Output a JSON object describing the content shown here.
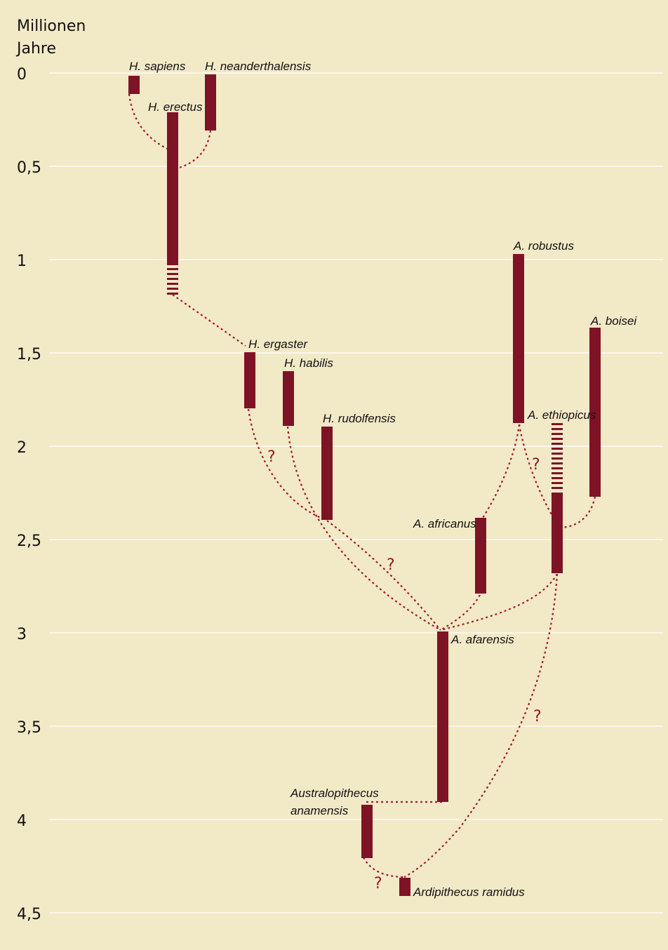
{
  "colors": {
    "background": "#f2e9c7",
    "bar": "#7e1326",
    "link": "#a31c33",
    "grid": "#fbf7ea"
  },
  "axis": {
    "title_line1": "Millionen",
    "title_line2": "Jahre",
    "unit": "million years ago",
    "ticks": [
      {
        "value": 0,
        "label": "0"
      },
      {
        "value": 0.5,
        "label": "0,5"
      },
      {
        "value": 1,
        "label": "1"
      },
      {
        "value": 1.5,
        "label": "1,5"
      },
      {
        "value": 2,
        "label": "2"
      },
      {
        "value": 2.5,
        "label": "2,5"
      },
      {
        "value": 3,
        "label": "3"
      },
      {
        "value": 3.5,
        "label": "3,5"
      },
      {
        "value": 4,
        "label": "4"
      },
      {
        "value": 4.5,
        "label": "4,5"
      }
    ]
  },
  "species": [
    {
      "id": "sapiens",
      "label": "H. sapiens",
      "start": 0.0,
      "end": 0.1
    },
    {
      "id": "neanderthalensis",
      "label": "H. neanderthalensis",
      "start": 0.0,
      "end": 0.3
    },
    {
      "id": "erectus",
      "label": "H. erectus",
      "start": 0.2,
      "end": 1.2,
      "uncertain_from": 1.05
    },
    {
      "id": "ergaster",
      "label": "H. ergaster",
      "start": 1.5,
      "end": 1.8
    },
    {
      "id": "habilis",
      "label": "H. habilis",
      "start": 1.6,
      "end": 1.9
    },
    {
      "id": "rudolfensis",
      "label": "H. rudolfensis",
      "start": 1.9,
      "end": 2.4
    },
    {
      "id": "robustus",
      "label": "A. robustus",
      "start": 0.95,
      "end": 1.85
    },
    {
      "id": "boisei",
      "label": "A. boisei",
      "start": 1.35,
      "end": 2.25
    },
    {
      "id": "ethiopicus",
      "label": "A. ethiopicus",
      "start": 1.85,
      "end": 2.7,
      "uncertain_to": 2.25
    },
    {
      "id": "africanus",
      "label": "A. africanus",
      "start": 2.4,
      "end": 2.8
    },
    {
      "id": "afarensis",
      "label": "A. afarensis",
      "start": 3.0,
      "end": 3.9
    },
    {
      "id": "anamensis",
      "label_line1": "Australopithecus",
      "label_line2": "anamensis",
      "start": 3.9,
      "end": 4.2
    },
    {
      "id": "ramidus",
      "label": "Ardipithecus ramidus",
      "start": 4.3,
      "end": 4.4
    }
  ],
  "uncertain_links": [
    {
      "from": "ergaster",
      "to": "afarensis"
    },
    {
      "from": "rudolfensis",
      "to": "afarensis"
    },
    {
      "from": "ethiopicus",
      "to": "robustus"
    },
    {
      "from": "afarensis",
      "to": "ethiopicus"
    },
    {
      "from": "ramidus",
      "to": "anamensis"
    }
  ],
  "question_mark": "?"
}
